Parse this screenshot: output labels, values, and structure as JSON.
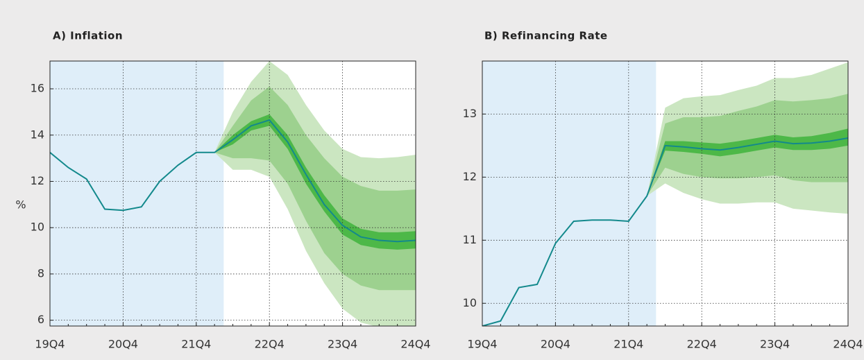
{
  "chart_data": [
    {
      "type": "fan",
      "title": "A) Inflation",
      "ylabel": "%",
      "categories": [
        "19Q4",
        null,
        null,
        null,
        "20Q4",
        null,
        null,
        null,
        "21Q4",
        null,
        null,
        null,
        "22Q4",
        null,
        null,
        null,
        "23Q4",
        null,
        null,
        null,
        "24Q4"
      ],
      "ylim": [
        5.75,
        17.2
      ],
      "yticks": [
        6,
        8,
        10,
        12,
        14,
        16
      ],
      "grid": true,
      "history_color": "#dfeef9",
      "series": [
        {
          "color": "#13898c",
          "values": [
            13.25,
            12.6,
            12.1,
            10.8,
            10.75,
            10.9,
            12.0,
            12.7,
            13.25,
            13.25,
            13.8,
            14.4,
            14.65,
            13.7,
            12.3,
            11.0,
            10.1,
            9.6,
            9.45,
            9.4,
            9.45
          ]
        }
      ],
      "bands": [
        {
          "color": "#cbe6c1",
          "upper": [
            null,
            null,
            null,
            null,
            null,
            null,
            null,
            null,
            null,
            13.25,
            15.0,
            16.3,
            17.2,
            16.6,
            15.3,
            14.2,
            13.4,
            13.05,
            13.0,
            13.05,
            13.15
          ],
          "lower": [
            null,
            null,
            null,
            null,
            null,
            null,
            null,
            null,
            null,
            13.25,
            12.5,
            12.5,
            12.2,
            10.8,
            9.0,
            7.6,
            6.5,
            5.9,
            5.7,
            5.6,
            5.6
          ]
        },
        {
          "color": "#9dd18f",
          "upper": [
            null,
            null,
            null,
            null,
            null,
            null,
            null,
            null,
            null,
            13.25,
            14.4,
            15.5,
            16.1,
            15.3,
            14.0,
            13.0,
            12.2,
            11.8,
            11.6,
            11.6,
            11.65
          ],
          "lower": [
            null,
            null,
            null,
            null,
            null,
            null,
            null,
            null,
            null,
            13.25,
            13.0,
            13.0,
            12.9,
            11.9,
            10.3,
            8.9,
            8.0,
            7.5,
            7.3,
            7.3,
            7.3
          ]
        },
        {
          "color": "#4db848",
          "upper": [
            null,
            null,
            null,
            null,
            null,
            null,
            null,
            null,
            null,
            13.25,
            14.0,
            14.6,
            14.9,
            14.0,
            12.6,
            11.4,
            10.4,
            9.95,
            9.8,
            9.8,
            9.85
          ],
          "lower": [
            null,
            null,
            null,
            null,
            null,
            null,
            null,
            null,
            null,
            13.25,
            13.6,
            14.2,
            14.4,
            13.4,
            11.9,
            10.7,
            9.7,
            9.25,
            9.1,
            9.05,
            9.1
          ]
        }
      ]
    },
    {
      "type": "fan",
      "title": "B) Refinancing Rate",
      "categories": [
        "19Q4",
        null,
        null,
        null,
        "20Q4",
        null,
        null,
        null,
        "21Q4",
        null,
        null,
        null,
        "22Q4",
        null,
        null,
        null,
        "23Q4",
        null,
        null,
        null,
        "24Q4"
      ],
      "ylim": [
        9.64,
        13.84
      ],
      "yticks": [
        10,
        11,
        12,
        13
      ],
      "grid": true,
      "history_color": "#dfeef9",
      "series": [
        {
          "color": "#13898c",
          "values": [
            9.64,
            9.72,
            10.25,
            10.3,
            10.95,
            11.3,
            11.32,
            11.32,
            11.3,
            11.7,
            12.5,
            12.48,
            12.45,
            12.43,
            12.47,
            12.52,
            12.57,
            12.53,
            12.54,
            12.57,
            12.62
          ]
        }
      ],
      "bands": [
        {
          "color": "#cbe6c1",
          "upper": [
            null,
            null,
            null,
            null,
            null,
            null,
            null,
            null,
            null,
            11.7,
            13.1,
            13.25,
            13.28,
            13.3,
            13.38,
            13.45,
            13.57,
            13.57,
            13.62,
            13.72,
            13.82
          ],
          "lower": [
            null,
            null,
            null,
            null,
            null,
            null,
            null,
            null,
            null,
            11.7,
            11.9,
            11.75,
            11.65,
            11.58,
            11.58,
            11.6,
            11.6,
            11.5,
            11.47,
            11.44,
            11.42
          ]
        },
        {
          "color": "#9dd18f",
          "upper": [
            null,
            null,
            null,
            null,
            null,
            null,
            null,
            null,
            null,
            11.7,
            12.85,
            12.95,
            12.95,
            12.97,
            13.05,
            13.12,
            13.22,
            13.2,
            13.22,
            13.25,
            13.32
          ],
          "lower": [
            null,
            null,
            null,
            null,
            null,
            null,
            null,
            null,
            null,
            11.7,
            12.15,
            12.05,
            12.0,
            11.98,
            11.98,
            12.0,
            12.03,
            11.95,
            11.92,
            11.92,
            11.92
          ]
        },
        {
          "color": "#4db848",
          "upper": [
            null,
            null,
            null,
            null,
            null,
            null,
            null,
            null,
            null,
            11.7,
            12.57,
            12.57,
            12.55,
            12.53,
            12.57,
            12.62,
            12.67,
            12.63,
            12.65,
            12.7,
            12.77
          ],
          "lower": [
            null,
            null,
            null,
            null,
            null,
            null,
            null,
            null,
            null,
            11.7,
            12.42,
            12.4,
            12.37,
            12.33,
            12.37,
            12.42,
            12.47,
            12.43,
            12.43,
            12.45,
            12.5
          ]
        }
      ]
    }
  ]
}
